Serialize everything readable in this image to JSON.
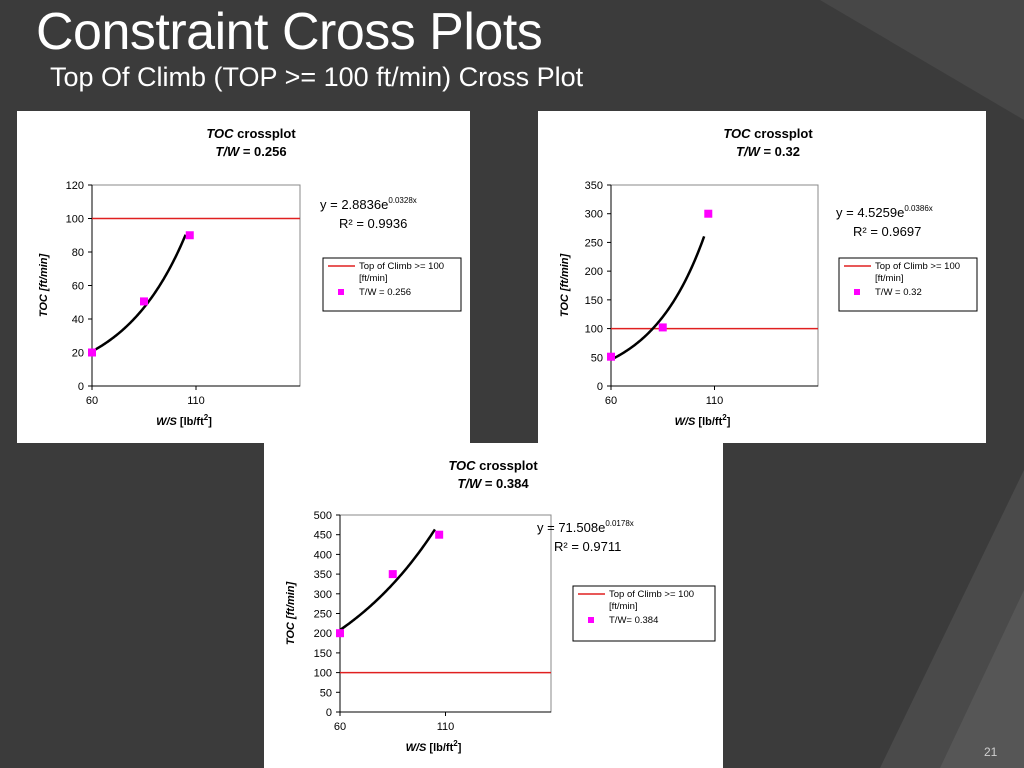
{
  "slide": {
    "title": "Constraint Cross Plots",
    "subtitle": "Top Of Climb (TOP >= 100 ft/min) Cross Plot",
    "page_number": "21",
    "colors": {
      "background": "#3b3b3b",
      "constraint_line": "#e02020",
      "marker": "#ff00ff",
      "fit_curve": "#000000"
    }
  },
  "chart_data": [
    {
      "type": "scatter",
      "title_main": "TOC",
      "title_suffix": " crossplot",
      "subtitle_label": "T/W",
      "subtitle_value": " = 0.256",
      "xlabel_main": "W/S",
      "xlabel_unit": " [lb/ft",
      "xlabel_exp": "2",
      "xlabel_close": "]",
      "ylabel": "TOC [ft/min]",
      "xlim": [
        60,
        160
      ],
      "ylim": [
        0,
        120
      ],
      "yticks": [
        0,
        20,
        40,
        60,
        80,
        100,
        120
      ],
      "xticks": [
        60,
        110
      ],
      "constraint": {
        "name": "Top of Climb  >= 100",
        "name_line2": "[ft/min]",
        "value": 100
      },
      "series": [
        {
          "name": "T/W = 0.256",
          "x": [
            60,
            85,
            107
          ],
          "y": [
            20,
            50.5,
            90
          ]
        }
      ],
      "fit": {
        "equation_prefix": "y = 2.8836e",
        "equation_exp": "0.0328x",
        "r2": "R² = 0.9936",
        "a": 2.8836,
        "b": 0.0328,
        "x_range": [
          60,
          105
        ]
      },
      "legend_position": "right"
    },
    {
      "type": "scatter",
      "title_main": "TOC",
      "title_suffix": " crossplot",
      "subtitle_label": "T/W",
      "subtitle_value": " = 0.32",
      "xlabel_main": "W/S",
      "xlabel_unit": " [lb/ft",
      "xlabel_exp": "2",
      "xlabel_close": "]",
      "ylabel": "TOC [ft/min]",
      "xlim": [
        60,
        160
      ],
      "ylim": [
        0,
        350
      ],
      "yticks": [
        0,
        50,
        100,
        150,
        200,
        250,
        300,
        350
      ],
      "xticks": [
        60,
        110
      ],
      "constraint": {
        "name": "Top of Climb  >= 100",
        "name_line2": "[ft/min]",
        "value": 100
      },
      "series": [
        {
          "name": "T/W = 0.32",
          "x": [
            60,
            85,
            107
          ],
          "y": [
            51,
            102,
            300
          ]
        }
      ],
      "fit": {
        "equation_prefix": "y = 4.5259e",
        "equation_exp": "0.0386x",
        "r2": "R² = 0.9697",
        "a": 4.5259,
        "b": 0.0386,
        "x_range": [
          60,
          105
        ]
      },
      "legend_position": "right"
    },
    {
      "type": "scatter",
      "title_main": "TOC",
      "title_suffix": " crossplot",
      "subtitle_label": "T/W",
      "subtitle_value": " = 0.384",
      "xlabel_main": "W/S",
      "xlabel_unit": " [lb/ft",
      "xlabel_exp": "2",
      "xlabel_close": "]",
      "ylabel": "TOC [ft/min]",
      "xlim": [
        60,
        160
      ],
      "ylim": [
        0,
        500
      ],
      "yticks": [
        0,
        50,
        100,
        150,
        200,
        250,
        300,
        350,
        400,
        450,
        500
      ],
      "xticks": [
        60,
        110
      ],
      "constraint": {
        "name": "Top of Climb  >= 100",
        "name_line2": "[ft/min]",
        "value": 100
      },
      "series": [
        {
          "name": "T/W= 0.384",
          "x": [
            60,
            85,
            107
          ],
          "y": [
            200,
            350,
            450
          ]
        }
      ],
      "fit": {
        "equation_prefix": "y = 71.508e",
        "equation_exp": "0.0178x",
        "r2": "R² = 0.9711",
        "a": 71.508,
        "b": 0.0178,
        "x_range": [
          60,
          105
        ]
      },
      "legend_position": "right"
    }
  ]
}
